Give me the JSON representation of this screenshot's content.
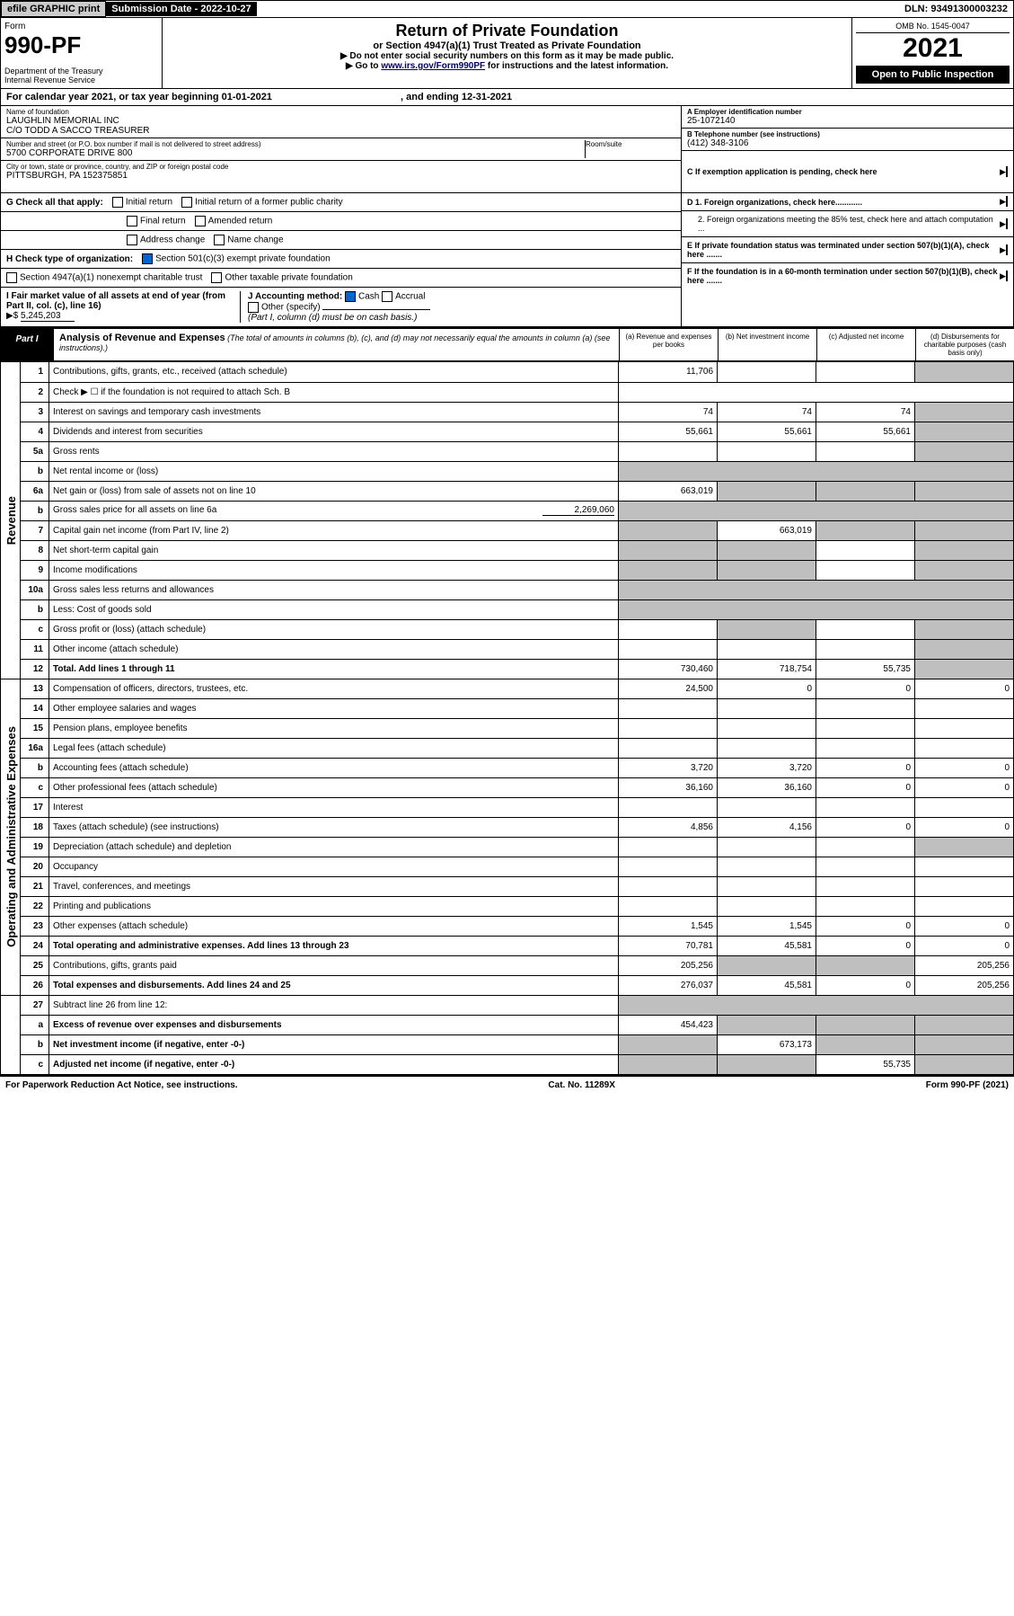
{
  "topbar": {
    "efile": "efile GRAPHIC print",
    "subdate_lbl": "Submission Date - ",
    "subdate": "2022-10-27",
    "dln_lbl": "DLN: ",
    "dln": "93491300003232"
  },
  "header": {
    "form_lbl": "Form",
    "form_num": "990-PF",
    "dept": "Department of the Treasury\nInternal Revenue Service",
    "title": "Return of Private Foundation",
    "subtitle": "or Section 4947(a)(1) Trust Treated as Private Foundation",
    "instr1": "▶ Do not enter social security numbers on this form as it may be made public.",
    "instr2_pre": "▶ Go to ",
    "instr2_link": "www.irs.gov/Form990PF",
    "instr2_post": " for instructions and the latest information.",
    "omb": "OMB No. 1545-0047",
    "year": "2021",
    "open": "Open to Public Inspection"
  },
  "calyear": {
    "pre": "For calendar year 2021, or tax year beginning ",
    "begin": "01-01-2021",
    "mid": " , and ending ",
    "end": "12-31-2021"
  },
  "info": {
    "name_lbl": "Name of foundation",
    "name": "LAUGHLIN MEMORIAL INC\nC/O TODD A SACCO TREASURER",
    "addr_lbl": "Number and street (or P.O. box number if mail is not delivered to street address)",
    "addr": "5700 CORPORATE DRIVE 800",
    "room_lbl": "Room/suite",
    "city_lbl": "City or town, state or province, country, and ZIP or foreign postal code",
    "city": "PITTSBURGH, PA  152375851",
    "a_lbl": "A Employer identification number",
    "a_val": "25-1072140",
    "b_lbl": "B Telephone number (see instructions)",
    "b_val": "(412) 348-3106",
    "c_lbl": "C If exemption application is pending, check here",
    "d1": "D 1. Foreign organizations, check here............",
    "d2": "2. Foreign organizations meeting the 85% test, check here and attach computation ...",
    "e": "E  If private foundation status was terminated under section 507(b)(1)(A), check here .......",
    "f": "F  If the foundation is in a 60-month termination under section 507(b)(1)(B), check here .......",
    "g_lbl": "G Check all that apply:",
    "g_opts": [
      "Initial return",
      "Initial return of a former public charity",
      "Final return",
      "Amended return",
      "Address change",
      "Name change"
    ],
    "h_lbl": "H Check type of organization:",
    "h_opts": [
      "Section 501(c)(3) exempt private foundation",
      "Section 4947(a)(1) nonexempt charitable trust",
      "Other taxable private foundation"
    ],
    "i_lbl": "I Fair market value of all assets at end of year (from Part II, col. (c), line 16)",
    "i_val": "5,245,203",
    "j_lbl": "J Accounting method:",
    "j_opts": [
      "Cash",
      "Accrual",
      "Other (specify)"
    ],
    "j_note": "(Part I, column (d) must be on cash basis.)"
  },
  "part1": {
    "label": "Part I",
    "title": "Analysis of Revenue and Expenses",
    "note": "(The total of amounts in columns (b), (c), and (d) may not necessarily equal the amounts in column (a) (see instructions).)",
    "cols": {
      "a": "(a) Revenue and expenses per books",
      "b": "(b) Net investment income",
      "c": "(c) Adjusted net income",
      "d": "(d) Disbursements for charitable purposes (cash basis only)"
    }
  },
  "sections": {
    "rev": "Revenue",
    "exp": "Operating and Administrative Expenses"
  },
  "rows": [
    {
      "ln": "1",
      "desc": "Contributions, gifts, grants, etc., received (attach schedule)",
      "a": "11,706",
      "b": "",
      "c": "",
      "d": "",
      "dgray": true,
      "sec": "rev"
    },
    {
      "ln": "2",
      "desc": "Check ▶ ☐ if the foundation is not required to attach Sch. B",
      "span": true,
      "sec": "rev"
    },
    {
      "ln": "3",
      "desc": "Interest on savings and temporary cash investments",
      "a": "74",
      "b": "74",
      "c": "74",
      "d": "",
      "dgray": true,
      "sec": "rev"
    },
    {
      "ln": "4",
      "desc": "Dividends and interest from securities",
      "a": "55,661",
      "b": "55,661",
      "c": "55,661",
      "d": "",
      "dgray": true,
      "sec": "rev"
    },
    {
      "ln": "5a",
      "desc": "Gross rents",
      "a": "",
      "b": "",
      "c": "",
      "d": "",
      "dgray": true,
      "sec": "rev"
    },
    {
      "ln": "b",
      "desc": "Net rental income or (loss)",
      "blank": true,
      "span": true,
      "sec": "rev",
      "halfgray": true
    },
    {
      "ln": "6a",
      "desc": "Net gain or (loss) from sale of assets not on line 10",
      "a": "663,019",
      "b": "",
      "c": "",
      "d": "",
      "bgray": true,
      "cgray": true,
      "dgray": true,
      "sec": "rev"
    },
    {
      "ln": "b",
      "desc": "Gross sales price for all assets on line 6a",
      "inline": "2,269,060",
      "span": true,
      "sec": "rev",
      "halfgray": true
    },
    {
      "ln": "7",
      "desc": "Capital gain net income (from Part IV, line 2)",
      "a": "",
      "b": "663,019",
      "c": "",
      "d": "",
      "agray": true,
      "cgray": true,
      "dgray": true,
      "sec": "rev"
    },
    {
      "ln": "8",
      "desc": "Net short-term capital gain",
      "a": "",
      "b": "",
      "c": "",
      "d": "",
      "agray": true,
      "bgray": true,
      "dgray": true,
      "sec": "rev"
    },
    {
      "ln": "9",
      "desc": "Income modifications",
      "a": "",
      "b": "",
      "c": "",
      "d": "",
      "agray": true,
      "bgray": true,
      "dgray": true,
      "sec": "rev"
    },
    {
      "ln": "10a",
      "desc": "Gross sales less returns and allowances",
      "blank": true,
      "span": true,
      "sec": "rev",
      "halfgray": true
    },
    {
      "ln": "b",
      "desc": "Less: Cost of goods sold",
      "blank": true,
      "span": true,
      "sec": "rev",
      "halfgray": true
    },
    {
      "ln": "c",
      "desc": "Gross profit or (loss) (attach schedule)",
      "a": "",
      "b": "",
      "c": "",
      "d": "",
      "bgray": true,
      "dgray": true,
      "sec": "rev"
    },
    {
      "ln": "11",
      "desc": "Other income (attach schedule)",
      "a": "",
      "b": "",
      "c": "",
      "d": "",
      "dgray": true,
      "sec": "rev"
    },
    {
      "ln": "12",
      "desc": "Total. Add lines 1 through 11",
      "bold": true,
      "a": "730,460",
      "b": "718,754",
      "c": "55,735",
      "d": "",
      "dgray": true,
      "sec": "rev"
    },
    {
      "ln": "13",
      "desc": "Compensation of officers, directors, trustees, etc.",
      "a": "24,500",
      "b": "0",
      "c": "0",
      "d": "0",
      "sec": "exp"
    },
    {
      "ln": "14",
      "desc": "Other employee salaries and wages",
      "a": "",
      "b": "",
      "c": "",
      "d": "",
      "sec": "exp"
    },
    {
      "ln": "15",
      "desc": "Pension plans, employee benefits",
      "a": "",
      "b": "",
      "c": "",
      "d": "",
      "sec": "exp"
    },
    {
      "ln": "16a",
      "desc": "Legal fees (attach schedule)",
      "a": "",
      "b": "",
      "c": "",
      "d": "",
      "sec": "exp"
    },
    {
      "ln": "b",
      "desc": "Accounting fees (attach schedule)",
      "a": "3,720",
      "b": "3,720",
      "c": "0",
      "d": "0",
      "sec": "exp"
    },
    {
      "ln": "c",
      "desc": "Other professional fees (attach schedule)",
      "a": "36,160",
      "b": "36,160",
      "c": "0",
      "d": "0",
      "sec": "exp"
    },
    {
      "ln": "17",
      "desc": "Interest",
      "a": "",
      "b": "",
      "c": "",
      "d": "",
      "sec": "exp"
    },
    {
      "ln": "18",
      "desc": "Taxes (attach schedule) (see instructions)",
      "a": "4,856",
      "b": "4,156",
      "c": "0",
      "d": "0",
      "sec": "exp"
    },
    {
      "ln": "19",
      "desc": "Depreciation (attach schedule) and depletion",
      "a": "",
      "b": "",
      "c": "",
      "d": "",
      "dgray": true,
      "sec": "exp"
    },
    {
      "ln": "20",
      "desc": "Occupancy",
      "a": "",
      "b": "",
      "c": "",
      "d": "",
      "sec": "exp"
    },
    {
      "ln": "21",
      "desc": "Travel, conferences, and meetings",
      "a": "",
      "b": "",
      "c": "",
      "d": "",
      "sec": "exp"
    },
    {
      "ln": "22",
      "desc": "Printing and publications",
      "a": "",
      "b": "",
      "c": "",
      "d": "",
      "sec": "exp"
    },
    {
      "ln": "23",
      "desc": "Other expenses (attach schedule)",
      "a": "1,545",
      "b": "1,545",
      "c": "0",
      "d": "0",
      "sec": "exp"
    },
    {
      "ln": "24",
      "desc": "Total operating and administrative expenses. Add lines 13 through 23",
      "bold": true,
      "a": "70,781",
      "b": "45,581",
      "c": "0",
      "d": "0",
      "sec": "exp"
    },
    {
      "ln": "25",
      "desc": "Contributions, gifts, grants paid",
      "a": "205,256",
      "b": "",
      "c": "",
      "d": "205,256",
      "bgray": true,
      "cgray": true,
      "sec": "exp"
    },
    {
      "ln": "26",
      "desc": "Total expenses and disbursements. Add lines 24 and 25",
      "bold": true,
      "a": "276,037",
      "b": "45,581",
      "c": "0",
      "d": "205,256",
      "sec": "exp"
    },
    {
      "ln": "27",
      "desc": "Subtract line 26 from line 12:",
      "span": true,
      "sec": "none",
      "halfgray": true
    },
    {
      "ln": "a",
      "desc": "Excess of revenue over expenses and disbursements",
      "bold": true,
      "a": "454,423",
      "b": "",
      "c": "",
      "d": "",
      "bgray": true,
      "cgray": true,
      "dgray": true,
      "sec": "none"
    },
    {
      "ln": "b",
      "desc": "Net investment income (if negative, enter -0-)",
      "bold": true,
      "a": "",
      "b": "673,173",
      "c": "",
      "d": "",
      "agray": true,
      "cgray": true,
      "dgray": true,
      "sec": "none"
    },
    {
      "ln": "c",
      "desc": "Adjusted net income (if negative, enter -0-)",
      "bold": true,
      "a": "",
      "b": "",
      "c": "55,735",
      "d": "",
      "agray": true,
      "bgray": true,
      "dgray": true,
      "sec": "none"
    }
  ],
  "footer": {
    "left": "For Paperwork Reduction Act Notice, see instructions.",
    "mid": "Cat. No. 11289X",
    "right": "Form 990-PF (2021)"
  }
}
